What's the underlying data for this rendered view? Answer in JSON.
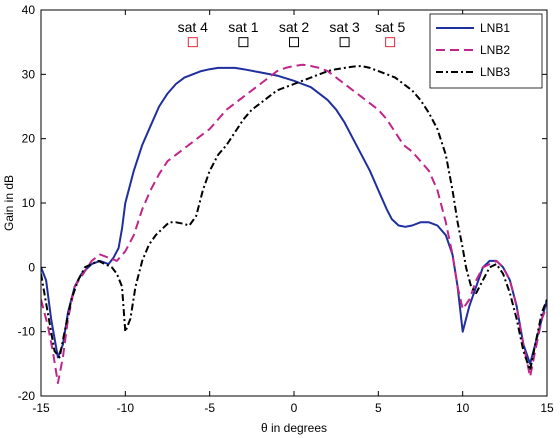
{
  "chart_data": {
    "type": "line",
    "title": "",
    "xlabel": "θ in degrees",
    "ylabel": "Gain in dB",
    "xlim": [
      -15,
      15
    ],
    "ylim": [
      -20,
      40
    ],
    "xticks": [
      -15,
      -10,
      -5,
      0,
      5,
      10,
      15
    ],
    "yticks": [
      -20,
      -10,
      0,
      10,
      20,
      30,
      40
    ],
    "grid": false,
    "legend": "top-right",
    "series": [
      {
        "name": "LNB1",
        "color": "#1f2f9e",
        "dash": "solid",
        "points": [
          [
            -15,
            0
          ],
          [
            -14.7,
            -2
          ],
          [
            -14.4,
            -8
          ],
          [
            -14.0,
            -14
          ],
          [
            -13.7,
            -12
          ],
          [
            -13.4,
            -7
          ],
          [
            -13.0,
            -3
          ],
          [
            -12.6,
            -1
          ],
          [
            -12.0,
            0.5
          ],
          [
            -11.5,
            1
          ],
          [
            -11.0,
            0.5
          ],
          [
            -10.7,
            1.5
          ],
          [
            -10.4,
            3
          ],
          [
            -10.2,
            6
          ],
          [
            -10.0,
            10
          ],
          [
            -9.5,
            15
          ],
          [
            -9.0,
            19
          ],
          [
            -8.5,
            22
          ],
          [
            -8.0,
            25
          ],
          [
            -7.5,
            27
          ],
          [
            -7.0,
            28.5
          ],
          [
            -6.5,
            29.5
          ],
          [
            -6.0,
            30
          ],
          [
            -5.5,
            30.5
          ],
          [
            -5.0,
            30.8
          ],
          [
            -4.5,
            31
          ],
          [
            -4.0,
            31
          ],
          [
            -3.5,
            31
          ],
          [
            -3.0,
            30.8
          ],
          [
            -2.0,
            30.3
          ],
          [
            -1.0,
            29.8
          ],
          [
            0,
            29
          ],
          [
            0.5,
            28.5
          ],
          [
            1.0,
            28
          ],
          [
            1.5,
            27
          ],
          [
            2.0,
            26
          ],
          [
            2.5,
            24.5
          ],
          [
            3.0,
            22.5
          ],
          [
            3.5,
            20
          ],
          [
            4.0,
            17.5
          ],
          [
            4.5,
            15
          ],
          [
            5.0,
            12
          ],
          [
            5.5,
            9
          ],
          [
            5.8,
            7.5
          ],
          [
            6.2,
            6.5
          ],
          [
            6.6,
            6.3
          ],
          [
            7.0,
            6.5
          ],
          [
            7.5,
            7
          ],
          [
            8.0,
            7
          ],
          [
            8.5,
            6.5
          ],
          [
            9.0,
            5
          ],
          [
            9.4,
            2
          ],
          [
            9.7,
            -3
          ],
          [
            10.0,
            -10
          ],
          [
            10.4,
            -6
          ],
          [
            10.8,
            -3
          ],
          [
            11.2,
            0
          ],
          [
            11.6,
            1
          ],
          [
            12.0,
            1
          ],
          [
            12.4,
            0
          ],
          [
            12.8,
            -2
          ],
          [
            13.2,
            -6
          ],
          [
            13.6,
            -12
          ],
          [
            14.0,
            -15
          ],
          [
            14.3,
            -12
          ],
          [
            14.7,
            -8
          ],
          [
            15,
            -5
          ]
        ]
      },
      {
        "name": "LNB2",
        "color": "#c0268a",
        "dash": "dashed",
        "points": [
          [
            -15,
            -5
          ],
          [
            -14.6,
            -9
          ],
          [
            -14.3,
            -13
          ],
          [
            -14.0,
            -18
          ],
          [
            -13.7,
            -14
          ],
          [
            -13.4,
            -8
          ],
          [
            -13.0,
            -3
          ],
          [
            -12.5,
            -1
          ],
          [
            -12.0,
            1
          ],
          [
            -11.5,
            2
          ],
          [
            -11.0,
            1.5
          ],
          [
            -10.5,
            1
          ],
          [
            -10.0,
            2.5
          ],
          [
            -9.5,
            5
          ],
          [
            -9.0,
            9
          ],
          [
            -8.5,
            12
          ],
          [
            -8.0,
            14.5
          ],
          [
            -7.5,
            16.5
          ],
          [
            -7.0,
            17.5
          ],
          [
            -6.5,
            18.5
          ],
          [
            -6.0,
            19.5
          ],
          [
            -5.5,
            20.5
          ],
          [
            -5.0,
            21.5
          ],
          [
            -4.5,
            23
          ],
          [
            -4.0,
            24.5
          ],
          [
            -3.5,
            25.5
          ],
          [
            -3.0,
            26.5
          ],
          [
            -2.5,
            27.5
          ],
          [
            -2.0,
            28.5
          ],
          [
            -1.5,
            29.5
          ],
          [
            -1.0,
            30.5
          ],
          [
            -0.5,
            31
          ],
          [
            0,
            31.3
          ],
          [
            0.5,
            31.5
          ],
          [
            1.0,
            31.3
          ],
          [
            1.5,
            31
          ],
          [
            2.0,
            30.5
          ],
          [
            2.5,
            29.5
          ],
          [
            3.0,
            28.5
          ],
          [
            3.5,
            27.5
          ],
          [
            4.0,
            26.5
          ],
          [
            4.5,
            25.5
          ],
          [
            5.0,
            24.5
          ],
          [
            5.5,
            23
          ],
          [
            6.0,
            21
          ],
          [
            6.5,
            19
          ],
          [
            7.0,
            18
          ],
          [
            7.5,
            16.5
          ],
          [
            8.0,
            15
          ],
          [
            8.5,
            12
          ],
          [
            9.0,
            7
          ],
          [
            9.4,
            2
          ],
          [
            9.7,
            -3
          ],
          [
            10.0,
            -6.5
          ],
          [
            10.4,
            -5
          ],
          [
            10.8,
            -2
          ],
          [
            11.2,
            0
          ],
          [
            11.6,
            0.5
          ],
          [
            12.0,
            1
          ],
          [
            12.4,
            0
          ],
          [
            12.8,
            -2
          ],
          [
            13.2,
            -6
          ],
          [
            13.6,
            -12
          ],
          [
            14.0,
            -17
          ],
          [
            14.3,
            -13
          ],
          [
            14.7,
            -8
          ],
          [
            15,
            -6
          ]
        ]
      },
      {
        "name": "LNB3",
        "color": "#000000",
        "dash": "dashdot",
        "points": [
          [
            -15,
            -1
          ],
          [
            -14.6,
            -7
          ],
          [
            -14.2,
            -13
          ],
          [
            -13.9,
            -14
          ],
          [
            -13.6,
            -10
          ],
          [
            -13.2,
            -5
          ],
          [
            -12.8,
            -2
          ],
          [
            -12.4,
            0
          ],
          [
            -12.0,
            0.5
          ],
          [
            -11.6,
            1
          ],
          [
            -11.2,
            0.5
          ],
          [
            -10.8,
            0
          ],
          [
            -10.5,
            -1
          ],
          [
            -10.2,
            -3
          ],
          [
            -10.0,
            -10
          ],
          [
            -9.7,
            -8
          ],
          [
            -9.4,
            -3
          ],
          [
            -9.0,
            1
          ],
          [
            -8.6,
            3.5
          ],
          [
            -8.2,
            5
          ],
          [
            -7.8,
            6
          ],
          [
            -7.4,
            7
          ],
          [
            -7.0,
            7
          ],
          [
            -6.6,
            6.8
          ],
          [
            -6.2,
            6.5
          ],
          [
            -5.8,
            8
          ],
          [
            -5.4,
            12
          ],
          [
            -5.0,
            15
          ],
          [
            -4.5,
            17.5
          ],
          [
            -4.0,
            19
          ],
          [
            -3.5,
            21
          ],
          [
            -3.0,
            23
          ],
          [
            -2.5,
            24.5
          ],
          [
            -2.0,
            25.5
          ],
          [
            -1.5,
            26.5
          ],
          [
            -1.0,
            27.5
          ],
          [
            -0.5,
            28
          ],
          [
            0,
            28.5
          ],
          [
            0.5,
            29
          ],
          [
            1.0,
            29.5
          ],
          [
            1.5,
            30
          ],
          [
            2.0,
            30.5
          ],
          [
            2.5,
            30.8
          ],
          [
            3.0,
            31
          ],
          [
            3.5,
            31.2
          ],
          [
            4.0,
            31.3
          ],
          [
            4.5,
            31
          ],
          [
            5.0,
            30.5
          ],
          [
            5.5,
            30
          ],
          [
            6.0,
            29.5
          ],
          [
            6.5,
            28.5
          ],
          [
            7.0,
            27.5
          ],
          [
            7.5,
            26
          ],
          [
            8.0,
            24
          ],
          [
            8.5,
            21.5
          ],
          [
            9.0,
            17.5
          ],
          [
            9.4,
            12
          ],
          [
            9.7,
            7
          ],
          [
            10.0,
            3
          ],
          [
            10.2,
            0
          ],
          [
            10.5,
            -3
          ],
          [
            10.8,
            -4
          ],
          [
            11.2,
            -2
          ],
          [
            11.6,
            0
          ],
          [
            12.0,
            0.5
          ],
          [
            12.4,
            -1
          ],
          [
            12.8,
            -4
          ],
          [
            13.2,
            -8
          ],
          [
            13.6,
            -13
          ],
          [
            14.0,
            -16
          ],
          [
            14.3,
            -12
          ],
          [
            14.7,
            -7
          ],
          [
            15,
            -5
          ]
        ]
      }
    ],
    "satellites": [
      {
        "label": "sat 4",
        "x": -6,
        "y": 35,
        "color": "#e0283a"
      },
      {
        "label": "sat 1",
        "x": -3,
        "y": 35,
        "color": "#000000"
      },
      {
        "label": "sat 2",
        "x": 0,
        "y": 35,
        "color": "#000000"
      },
      {
        "label": "sat 3",
        "x": 3,
        "y": 35,
        "color": "#000000"
      },
      {
        "label": "sat 5",
        "x": 5.7,
        "y": 35,
        "color": "#e0283a"
      }
    ]
  }
}
